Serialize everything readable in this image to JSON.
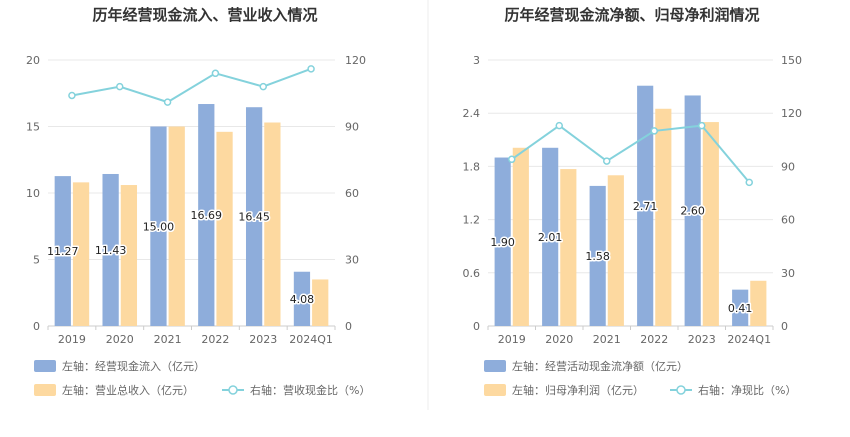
{
  "chart_data": [
    {
      "type": "bar+line",
      "title": "历年经营现金流入、营业收入情况",
      "categories": [
        "2019",
        "2020",
        "2021",
        "2022",
        "2023",
        "2024Q1"
      ],
      "left_axis": {
        "ylim": [
          0,
          20
        ],
        "ticks": [
          "0",
          "5",
          "10",
          "15",
          "20"
        ]
      },
      "right_axis": {
        "ylim": [
          0,
          120
        ],
        "ticks": [
          "0",
          "30",
          "60",
          "90",
          "120"
        ]
      },
      "series": [
        {
          "name": "左轴：经营现金流入（亿元）",
          "kind": "bar",
          "axis": "left",
          "color": "#8eaddb",
          "values": [
            11.27,
            11.43,
            15.0,
            16.69,
            16.45,
            4.08
          ],
          "labels": [
            "11.27",
            "11.43",
            "15.00",
            "16.69",
            "16.45",
            "4.08"
          ]
        },
        {
          "name": "左轴：营业总收入（亿元）",
          "kind": "bar",
          "axis": "left",
          "color": "#fdd9a0",
          "values": [
            10.8,
            10.6,
            15.0,
            14.6,
            15.3,
            3.5
          ]
        },
        {
          "name": "右轴：营收现金比（%）",
          "kind": "line",
          "axis": "right",
          "color": "#84d2dc",
          "values": [
            104,
            108,
            101,
            114,
            108,
            116
          ]
        }
      ],
      "grid": true,
      "legend_position": "bottom"
    },
    {
      "type": "bar+line",
      "title": "历年经营现金流净额、归母净利润情况",
      "categories": [
        "2019",
        "2020",
        "2021",
        "2022",
        "2023",
        "2024Q1"
      ],
      "left_axis": {
        "ylim": [
          0,
          3
        ],
        "ticks": [
          "0",
          "0.6",
          "1.2",
          "1.8",
          "2.4",
          "3"
        ]
      },
      "right_axis": {
        "ylim": [
          0,
          150
        ],
        "ticks": [
          "0",
          "30",
          "60",
          "90",
          "120",
          "150"
        ]
      },
      "series": [
        {
          "name": "左轴：经营活动现金流净额（亿元）",
          "kind": "bar",
          "axis": "left",
          "color": "#8eaddb",
          "values": [
            1.9,
            2.01,
            1.58,
            2.71,
            2.6,
            0.41
          ],
          "labels": [
            "1.90",
            "2.01",
            "1.58",
            "2.71",
            "2.60",
            "0.41"
          ]
        },
        {
          "name": "左轴：归母净利润（亿元）",
          "kind": "bar",
          "axis": "left",
          "color": "#fdd9a0",
          "values": [
            2.01,
            1.77,
            1.7,
            2.45,
            2.3,
            0.51
          ]
        },
        {
          "name": "右轴：净现比（%）",
          "kind": "line",
          "axis": "right",
          "color": "#84d2dc",
          "values": [
            94,
            113,
            93,
            110,
            113,
            81
          ]
        }
      ],
      "grid": true,
      "legend_position": "bottom"
    }
  ]
}
